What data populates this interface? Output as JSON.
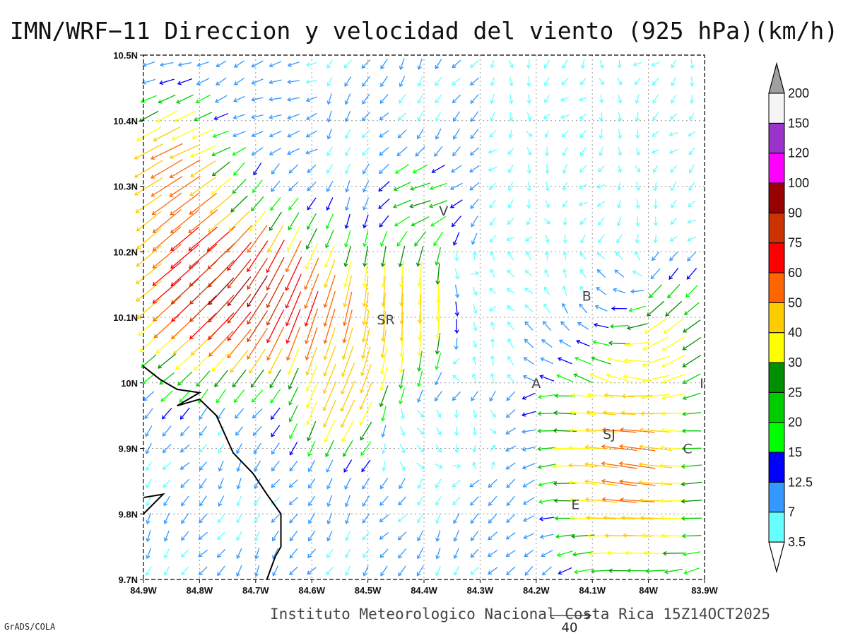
{
  "title": "IMN/WRF−11 Direccion y velocidad del viento (925 hPa)(km/h)",
  "footer": "Instituto Meteorologico Nacional Costa Rica 15Z14OCT2025",
  "credit": "GrADS/COLA",
  "reference_vector": {
    "label": "40",
    "speed": 40
  },
  "axes": {
    "lon_ticks": [
      "84.9W",
      "84.8W",
      "84.7W",
      "84.6W",
      "84.5W",
      "84.4W",
      "84.3W",
      "84.2W",
      "84.1W",
      "84W",
      "83.9W"
    ],
    "lat_ticks": [
      "10.5N",
      "10.4N",
      "10.3N",
      "10.2N",
      "10.1N",
      "10N",
      "9.9N",
      "9.8N",
      "9.7N"
    ],
    "lon_range": [
      -84.9,
      -83.9
    ],
    "lat_range": [
      9.7,
      10.5
    ],
    "grid": "dotted"
  },
  "cities": [
    {
      "label": "V",
      "lon": -84.365,
      "lat": 10.263
    },
    {
      "label": "B",
      "lon": -84.11,
      "lat": 10.133
    },
    {
      "label": "SR",
      "lon": -84.468,
      "lat": 10.097
    },
    {
      "label": "A",
      "lon": -84.2,
      "lat": 10.0
    },
    {
      "label": "I",
      "lon": -83.905,
      "lat": 10.0
    },
    {
      "label": "SJ",
      "lon": -84.07,
      "lat": 9.922
    },
    {
      "label": "C",
      "lon": -83.93,
      "lat": 9.9
    },
    {
      "label": "E",
      "lon": -84.13,
      "lat": 9.815
    }
  ],
  "colorbar": {
    "labels": [
      "3.5",
      "7",
      "12.5",
      "15",
      "20",
      "25",
      "30",
      "40",
      "50",
      "60",
      "75",
      "90",
      "100",
      "120",
      "150",
      "200"
    ],
    "colors": [
      "#66ffff",
      "#3399ff",
      "#0000ff",
      "#00ff00",
      "#00cc00",
      "#008f00",
      "#ffff00",
      "#ffcc00",
      "#ff6600",
      "#ff0000",
      "#cc3300",
      "#990000",
      "#ff00ff",
      "#9933cc",
      "#f5f5f5"
    ],
    "top_arrow_color": "#a0a0a0"
  },
  "coastline": [
    [
      -84.9,
      10.025
    ],
    [
      -84.87,
      10.005
    ],
    [
      -84.84,
      9.99
    ],
    [
      -84.8,
      9.985
    ],
    [
      -84.84,
      9.965
    ],
    [
      -84.8,
      9.975
    ],
    [
      -84.77,
      9.95
    ],
    [
      -84.74,
      9.893
    ],
    [
      -84.705,
      9.862
    ],
    [
      -84.68,
      9.83
    ],
    [
      -84.655,
      9.8
    ],
    [
      -84.655,
      9.75
    ],
    [
      -84.665,
      9.735
    ],
    [
      -84.68,
      9.7
    ]
  ],
  "coastline_island": [
    [
      -84.9,
      9.825
    ],
    [
      -84.865,
      9.83
    ],
    [
      -84.9,
      9.8
    ]
  ]
}
